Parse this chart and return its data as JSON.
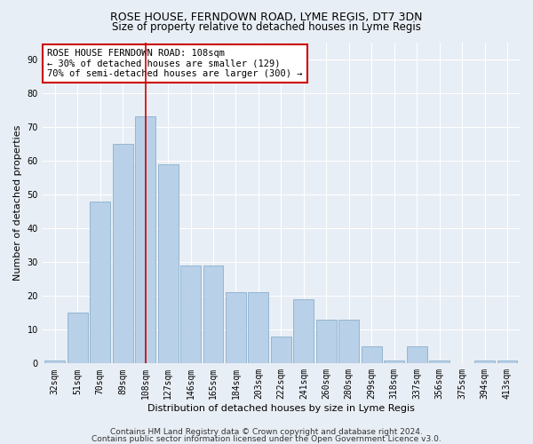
{
  "title_line1": "ROSE HOUSE, FERNDOWN ROAD, LYME REGIS, DT7 3DN",
  "title_line2": "Size of property relative to detached houses in Lyme Regis",
  "xlabel": "Distribution of detached houses by size in Lyme Regis",
  "ylabel": "Number of detached properties",
  "categories": [
    "32sqm",
    "51sqm",
    "70sqm",
    "89sqm",
    "108sqm",
    "127sqm",
    "146sqm",
    "165sqm",
    "184sqm",
    "203sqm",
    "222sqm",
    "241sqm",
    "260sqm",
    "280sqm",
    "299sqm",
    "318sqm",
    "337sqm",
    "356sqm",
    "375sqm",
    "394sqm",
    "413sqm"
  ],
  "values": [
    1,
    15,
    48,
    65,
    73,
    59,
    29,
    29,
    21,
    21,
    8,
    19,
    13,
    13,
    5,
    1,
    5,
    1,
    0,
    1,
    1
  ],
  "bar_color": "#b8d0e8",
  "bar_edge_color": "#8ab0cc",
  "vline_x_index": 4,
  "vline_color": "#cc0000",
  "annotation_text": "ROSE HOUSE FERNDOWN ROAD: 108sqm\n← 30% of detached houses are smaller (129)\n70% of semi-detached houses are larger (300) →",
  "annotation_box_color": "white",
  "annotation_box_edge_color": "#cc0000",
  "ylim": [
    0,
    95
  ],
  "yticks": [
    0,
    10,
    20,
    30,
    40,
    50,
    60,
    70,
    80,
    90
  ],
  "footer_line1": "Contains HM Land Registry data © Crown copyright and database right 2024.",
  "footer_line2": "Contains public sector information licensed under the Open Government Licence v3.0.",
  "bg_color": "#e8eef5",
  "plot_bg_color": "#e8eef5",
  "grid_color": "white",
  "title_fontsize": 9,
  "subtitle_fontsize": 8.5,
  "axis_label_fontsize": 8,
  "tick_fontsize": 7,
  "annotation_fontsize": 7.5,
  "footer_fontsize": 6.5
}
